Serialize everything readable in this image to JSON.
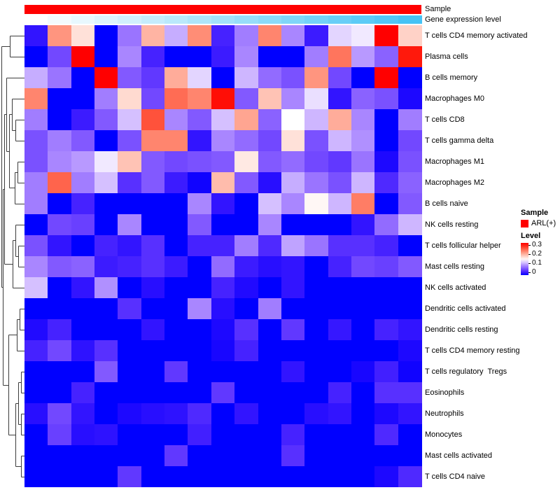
{
  "figure": {
    "annotation_rows": [
      {
        "label": "Sample"
      },
      {
        "label": "Gene expression level"
      }
    ]
  },
  "legend": {
    "sample_title": "Sample",
    "sample_item": "ARL(+)",
    "sample_color": "#FF0000",
    "level_title": "Level",
    "level_ticks": [
      "0.3",
      "0.2",
      "0.1",
      "0"
    ]
  },
  "chart_data": {
    "type": "heatmap",
    "title": "",
    "n_columns": 17,
    "row_labels": [
      "T cells CD4 memory activated",
      "Plasma cells",
      "B cells memory",
      "Macrophages M0",
      "T cells CD8",
      "T cells gamma delta",
      "Macrophages M1",
      "Macrophages M2",
      "B cells naive",
      "NK cells resting",
      "T cells follicular helper",
      "Mast cells resting",
      "NK cells activated",
      "Dendritic cells activated",
      "Dendritic cells resting",
      "T cells CD4 memory resting",
      "T cells regulatory  Tregs",
      "Eosinophils",
      "Neutrophils",
      "Monocytes",
      "Mast cells activated",
      "T cells CD4 naive"
    ],
    "values": [
      [
        0.02,
        0.22,
        0.17,
        0.0,
        0.08,
        0.2,
        0.11,
        0.225,
        0.03,
        0.085,
        0.23,
        0.09,
        0.025,
        0.13,
        0.14,
        0.3,
        0.18
      ],
      [
        0.0,
        0.055,
        0.3,
        0.0,
        0.09,
        0.03,
        0.0,
        0.0,
        0.025,
        0.09,
        0.0,
        0.0,
        0.085,
        0.24,
        0.1,
        0.07,
        0.29
      ],
      [
        0.11,
        0.08,
        0.0,
        0.3,
        0.065,
        0.045,
        0.205,
        0.13,
        0.0,
        0.115,
        0.075,
        0.06,
        0.22,
        0.055,
        0.0,
        0.3,
        0.0
      ],
      [
        0.23,
        0.0,
        0.0,
        0.085,
        0.175,
        0.055,
        0.245,
        0.23,
        0.295,
        0.065,
        0.19,
        0.09,
        0.135,
        0.02,
        0.07,
        0.06,
        0.01
      ],
      [
        0.085,
        0.0,
        0.025,
        0.065,
        0.12,
        0.26,
        0.09,
        0.065,
        0.12,
        0.21,
        0.07,
        0.15,
        0.115,
        0.205,
        0.09,
        0.0,
        0.085
      ],
      [
        0.06,
        0.085,
        0.065,
        0.0,
        0.06,
        0.23,
        0.23,
        0.02,
        0.09,
        0.075,
        0.055,
        0.17,
        0.06,
        0.115,
        0.095,
        0.0,
        0.055
      ],
      [
        0.06,
        0.09,
        0.1,
        0.14,
        0.19,
        0.065,
        0.055,
        0.06,
        0.065,
        0.165,
        0.065,
        0.075,
        0.055,
        0.045,
        0.08,
        0.01,
        0.06
      ],
      [
        0.085,
        0.25,
        0.085,
        0.12,
        0.04,
        0.065,
        0.025,
        0.005,
        0.195,
        0.065,
        0.015,
        0.11,
        0.08,
        0.06,
        0.115,
        0.035,
        0.07
      ],
      [
        0.085,
        0.0,
        0.03,
        0.0,
        0.0,
        0.0,
        0.0,
        0.09,
        0.02,
        0.0,
        0.12,
        0.09,
        0.155,
        0.115,
        0.235,
        0.0,
        0.065
      ],
      [
        0.0,
        0.055,
        0.05,
        0.0,
        0.09,
        0.0,
        0.0,
        0.065,
        0.0,
        0.0,
        0.09,
        0.0,
        0.0,
        0.0,
        0.02,
        0.075,
        0.115
      ],
      [
        0.06,
        0.02,
        0.0,
        0.03,
        0.02,
        0.04,
        0.0,
        0.03,
        0.03,
        0.085,
        0.035,
        0.105,
        0.08,
        0.04,
        0.04,
        0.03,
        0.0
      ],
      [
        0.09,
        0.065,
        0.07,
        0.025,
        0.03,
        0.04,
        0.025,
        0.0,
        0.075,
        0.025,
        0.015,
        0.02,
        0.0,
        0.03,
        0.055,
        0.05,
        0.065
      ],
      [
        0.12,
        0.0,
        0.02,
        0.095,
        0.0,
        0.015,
        0.0,
        0.0,
        0.03,
        0.012,
        0.0,
        0.02,
        0.0,
        0.0,
        0.0,
        0.0,
        0.0
      ],
      [
        0.0,
        0.0,
        0.0,
        0.0,
        0.04,
        0.0,
        0.0,
        0.09,
        0.015,
        0.0,
        0.085,
        0.0,
        0.0,
        0.0,
        0.0,
        0.0,
        0.0
      ],
      [
        0.012,
        0.03,
        0.0,
        0.0,
        0.0,
        0.02,
        0.0,
        0.0,
        0.01,
        0.04,
        0.0,
        0.045,
        0.0,
        0.022,
        0.0,
        0.03,
        0.02
      ],
      [
        0.03,
        0.055,
        0.018,
        0.04,
        0.0,
        0.0,
        0.0,
        0.0,
        0.008,
        0.03,
        0.0,
        0.0,
        0.0,
        0.0,
        0.0,
        0.0,
        0.01
      ],
      [
        0.0,
        0.0,
        0.0,
        0.065,
        0.0,
        0.0,
        0.045,
        0.0,
        0.0,
        0.0,
        0.0,
        0.02,
        0.0,
        0.0,
        0.008,
        0.028,
        0.005
      ],
      [
        0.0,
        0.0,
        0.03,
        0.0,
        0.0,
        0.0,
        0.0,
        0.0,
        0.045,
        0.0,
        0.0,
        0.0,
        0.0,
        0.03,
        0.0,
        0.04,
        0.04
      ],
      [
        0.015,
        0.055,
        0.02,
        0.0,
        0.01,
        0.015,
        0.018,
        0.035,
        0.0,
        0.02,
        0.0,
        0.0,
        0.015,
        0.02,
        0.0,
        0.01,
        0.02
      ],
      [
        0.0,
        0.05,
        0.015,
        0.018,
        0.0,
        0.0,
        0.0,
        0.028,
        0.0,
        0.0,
        0.0,
        0.03,
        0.0,
        0.0,
        0.0,
        0.035,
        0.0
      ],
      [
        0.0,
        0.0,
        0.0,
        0.0,
        0.0,
        0.0,
        0.045,
        0.0,
        0.0,
        0.0,
        0.0,
        0.04,
        0.0,
        0.0,
        0.0,
        0.0,
        0.0
      ],
      [
        0.0,
        0.0,
        0.0,
        0.0,
        0.045,
        0.0,
        0.0,
        0.0,
        0.0,
        0.0,
        0.0,
        0.0,
        0.0,
        0.0,
        0.0,
        0.01,
        0.035
      ]
    ],
    "colormap": {
      "name": "blue-white-red",
      "min": 0,
      "mid": 0.15,
      "max": 0.3,
      "min_color": "#0000FF",
      "mid_color": "#FFFFFF",
      "max_color": "#FF0000"
    },
    "legend_range": [
      0,
      0.3
    ],
    "column_annotations": {
      "sample": {
        "value_all_columns": "ARL(+)",
        "color": "#FF0000"
      },
      "gene_expression_level": {
        "start_color": "#FFFFFF",
        "end_color": "#46C3F5",
        "fractions": [
          0,
          0.0625,
          0.125,
          0.1875,
          0.25,
          0.3125,
          0.375,
          0.4375,
          0.5,
          0.5625,
          0.625,
          0.6875,
          0.75,
          0.8125,
          0.875,
          0.9375,
          1
        ]
      }
    },
    "row_dendrogram": true
  },
  "dendrogram": {
    "segments": [
      [
        14,
        51,
        35,
        51
      ],
      [
        14,
        81,
        35,
        81
      ],
      [
        14,
        51,
        14,
        81
      ],
      [
        2,
        66,
        14,
        66
      ],
      [
        22,
        171,
        35,
        171
      ],
      [
        22,
        201,
        35,
        201
      ],
      [
        22,
        171,
        22,
        201
      ],
      [
        17,
        141,
        35,
        141
      ],
      [
        17,
        186,
        22,
        186
      ],
      [
        17,
        141,
        17,
        186
      ],
      [
        25,
        231,
        35,
        231
      ],
      [
        25,
        261,
        35,
        261
      ],
      [
        25,
        231,
        25,
        261
      ],
      [
        21,
        246,
        25,
        246
      ],
      [
        21,
        291,
        35,
        291
      ],
      [
        21,
        246,
        21,
        291
      ],
      [
        13,
        163,
        17,
        163
      ],
      [
        13,
        268,
        21,
        268
      ],
      [
        13,
        163,
        13,
        268
      ],
      [
        9,
        111,
        35,
        111
      ],
      [
        9,
        216,
        13,
        216
      ],
      [
        9,
        111,
        9,
        216
      ],
      [
        26,
        351,
        35,
        351
      ],
      [
        26,
        381,
        35,
        381
      ],
      [
        26,
        351,
        26,
        381
      ],
      [
        22,
        321,
        35,
        321
      ],
      [
        22,
        366,
        26,
        366
      ],
      [
        22,
        321,
        22,
        366
      ],
      [
        18,
        343,
        22,
        343
      ],
      [
        18,
        411,
        35,
        411
      ],
      [
        18,
        343,
        18,
        411
      ],
      [
        6,
        163,
        9,
        163
      ],
      [
        6,
        377,
        18,
        377
      ],
      [
        6,
        163,
        6,
        377
      ],
      [
        28,
        441,
        35,
        441
      ],
      [
        28,
        471,
        35,
        471
      ],
      [
        28,
        441,
        28,
        471
      ],
      [
        24,
        456,
        28,
        456
      ],
      [
        24,
        501,
        35,
        501
      ],
      [
        24,
        456,
        24,
        501
      ],
      [
        30,
        531,
        35,
        531
      ],
      [
        30,
        561,
        35,
        561
      ],
      [
        30,
        531,
        30,
        561
      ],
      [
        30,
        591,
        35,
        591
      ],
      [
        30,
        621,
        35,
        621
      ],
      [
        30,
        591,
        30,
        621
      ],
      [
        26,
        546,
        30,
        546
      ],
      [
        26,
        606,
        30,
        606
      ],
      [
        26,
        546,
        26,
        606
      ],
      [
        30,
        651,
        35,
        651
      ],
      [
        30,
        681,
        35,
        681
      ],
      [
        30,
        651,
        30,
        681
      ],
      [
        22,
        576,
        26,
        576
      ],
      [
        22,
        666,
        30,
        666
      ],
      [
        22,
        576,
        22,
        666
      ],
      [
        12,
        478,
        24,
        478
      ],
      [
        12,
        621,
        22,
        621
      ],
      [
        12,
        478,
        12,
        621
      ],
      [
        4,
        270,
        6,
        270
      ],
      [
        4,
        550,
        12,
        550
      ],
      [
        4,
        270,
        4,
        550
      ],
      [
        2,
        410,
        4,
        410
      ],
      [
        2,
        66,
        2,
        410
      ]
    ]
  }
}
